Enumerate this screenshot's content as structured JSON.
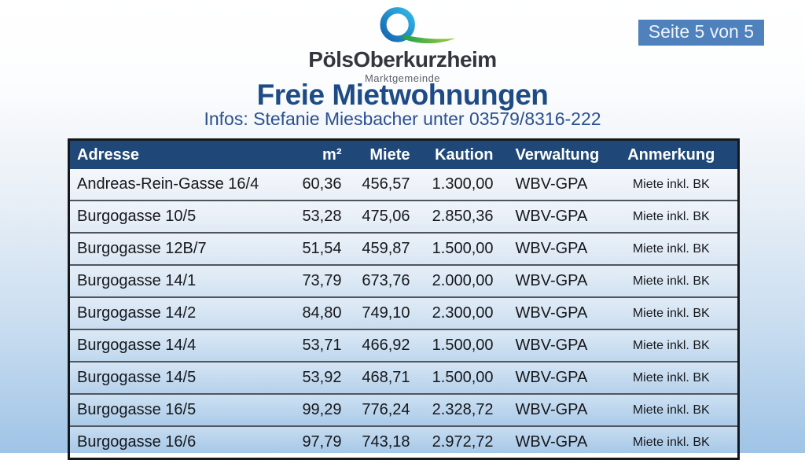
{
  "logo": {
    "icon": "q-swoosh-logo-icon",
    "name": "PölsOberkurzheim",
    "subname": "Marktgemeinde"
  },
  "page": {
    "badge": "Seite 5 von 5",
    "title": "Freie Mietwohnungen",
    "subtitle": "Infos: Stefanie Miesbacher unter 03579/8316-222"
  },
  "table": {
    "headers": [
      "Adresse",
      "m²",
      "Miete",
      "Kaution",
      "Verwaltung",
      "Anmerkung"
    ],
    "rows": [
      [
        "Andreas-Rein-Gasse 16/4",
        "60,36",
        "456,57",
        "1.300,00",
        "WBV-GPA",
        "Miete inkl. BK"
      ],
      [
        "Burgogasse 10/5",
        "53,28",
        "475,06",
        "2.850,36",
        "WBV-GPA",
        "Miete inkl. BK"
      ],
      [
        "Burgogasse 12B/7",
        "51,54",
        "459,87",
        "1.500,00",
        "WBV-GPA",
        "Miete inkl. BK"
      ],
      [
        "Burgogasse 14/1",
        "73,79",
        "673,76",
        "2.000,00",
        "WBV-GPA",
        "Miete inkl. BK"
      ],
      [
        "Burgogasse 14/2",
        "84,80",
        "749,10",
        "2.300,00",
        "WBV-GPA",
        "Miete inkl. BK"
      ],
      [
        "Burgogasse 14/4",
        "53,71",
        "466,92",
        "1.500,00",
        "WBV-GPA",
        "Miete inkl. BK"
      ],
      [
        "Burgogasse 14/5",
        "53,92",
        "468,71",
        "1.500,00",
        "WBV-GPA",
        "Miete inkl. BK"
      ],
      [
        "Burgogasse 16/5",
        "99,29",
        "776,24",
        "2.328,72",
        "WBV-GPA",
        "Miete inkl. BK"
      ],
      [
        "Burgogasse 16/6",
        "97,79",
        "743,18",
        "2.972,72",
        "WBV-GPA",
        "Miete inkl. BK"
      ]
    ]
  },
  "colors": {
    "header_bg": "#1f4878",
    "badge_bg": "#4f81bd",
    "title_color": "#1e4b85",
    "background_top": "#ffffff",
    "background_bottom": "#9fc4e6",
    "logo_blue": "#1565ae",
    "logo_teal": "#31b7e8",
    "logo_green": "#1e9e4f"
  }
}
